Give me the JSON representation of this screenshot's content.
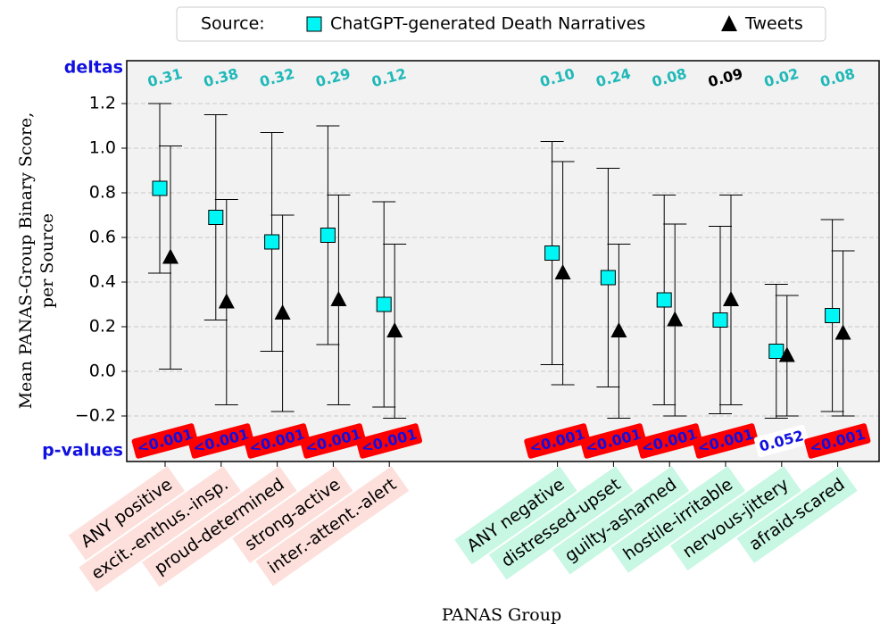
{
  "chart_data": {
    "type": "errorbar",
    "legend_title": "Source:",
    "xlabel": "PANAS Group",
    "ylabel": [
      "Mean PANAS-Group Binary Score,",
      "per Source"
    ],
    "categories": [
      "ANY positive",
      "excit.-enthus.-insp.",
      "proud-determined",
      "strong-active",
      "inter.-attent.-alert",
      null,
      null,
      "ANY negative",
      "distressed-upset",
      "guilty-ashamed",
      "hostile-irritable",
      "nervous-jittery",
      "afraid-scared"
    ],
    "category_colors": [
      "#fde0dc",
      "#fde0dc",
      "#fde0dc",
      "#fde0dc",
      "#fde0dc",
      null,
      null,
      "#c8f7e4",
      "#c8f7e4",
      "#c8f7e4",
      "#c8f7e4",
      "#c8f7e4",
      "#c8f7e4"
    ],
    "series": [
      {
        "name": "ChatGPT-generated Death Narratives",
        "color": "#00f5f5",
        "marker": "square",
        "values": [
          0.82,
          0.69,
          0.58,
          0.61,
          0.3,
          null,
          null,
          0.53,
          0.42,
          0.32,
          0.23,
          0.09,
          0.25
        ],
        "errors": [
          0.38,
          0.46,
          0.49,
          0.49,
          0.46,
          null,
          null,
          0.5,
          0.49,
          0.47,
          0.42,
          0.3,
          0.43
        ]
      },
      {
        "name": "Tweets",
        "color": "#000000",
        "marker": "triangle",
        "values": [
          0.51,
          0.31,
          0.26,
          0.32,
          0.18,
          null,
          null,
          0.44,
          0.18,
          0.23,
          0.32,
          0.07,
          0.17
        ],
        "errors": [
          0.5,
          0.46,
          0.44,
          0.47,
          0.39,
          null,
          null,
          0.5,
          0.39,
          0.43,
          0.47,
          0.27,
          0.37
        ]
      }
    ],
    "deltas": {
      "label": "deltas",
      "values": [
        "0.31",
        "0.38",
        "0.32",
        "0.29",
        "0.12",
        null,
        null,
        "0.10",
        "0.24",
        "0.08",
        "0.09",
        "0.02",
        "0.08"
      ],
      "colors": [
        "#20b8b8",
        "#20b8b8",
        "#20b8b8",
        "#20b8b8",
        "#20b8b8",
        null,
        null,
        "#20b8b8",
        "#20b8b8",
        "#20b8b8",
        "#000000",
        "#20b8b8",
        "#20b8b8"
      ]
    },
    "p_values": {
      "label": "p-values",
      "values": [
        "<0.001",
        "<0.001",
        "<0.001",
        "<0.001",
        "<0.001",
        null,
        null,
        "<0.001",
        "<0.001",
        "<0.001",
        "<0.001",
        "0.052",
        "<0.001"
      ],
      "colors": [
        "#ff0000",
        "#ff0000",
        "#ff0000",
        "#ff0000",
        "#ff0000",
        null,
        null,
        "#ff0000",
        "#ff0000",
        "#ff0000",
        "#ff0000",
        "#ffffff",
        "#ff0000"
      ]
    },
    "ylim": [
      -0.404,
      1.392
    ],
    "yticks": [
      {
        "value": -0.2,
        "label": "−0.2"
      },
      {
        "value": 0,
        "label": "0.0"
      },
      0.2,
      0.4,
      0.6,
      0.8,
      {
        "value": 1,
        "label": "1.0"
      },
      1.2
    ],
    "grid": true
  }
}
